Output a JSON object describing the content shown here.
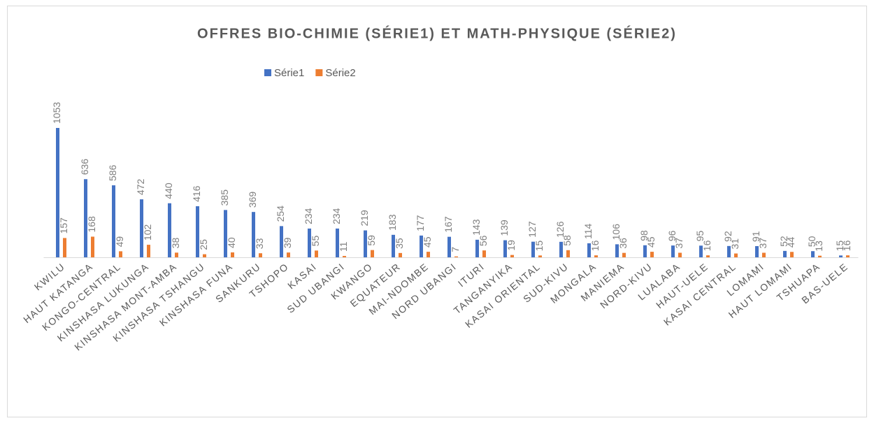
{
  "chart_data": {
    "type": "bar",
    "title": "OFFRES BIO-CHIMIE (SÉRIE1) ET MATH-PHYSIQUE (SÉRIE2)",
    "categories": [
      "KWILU",
      "HAUT KATANGA",
      "KONGO-CENTRAL",
      "KINSHASA LUKUNGA",
      "KINSHASA MONT-AMBA",
      "KINSHASA TSHANGU",
      "KINSHASA FUNA",
      "SANKURU",
      "TSHOPO",
      "KASAI",
      "SUD UBANGI",
      "KWANGO",
      "EQUATEUR",
      "MAI-NDOMBE",
      "NORD UBANGI",
      "ITURI",
      "TANGANYIKA",
      "KASAI ORIENTAL",
      "SUD-KIVU",
      "MONGALA",
      "MANIEMA",
      "NORD-KIVU",
      "LUALABA",
      "HAUT-UELE",
      "KASAI CENTRAL",
      "LOMAMI",
      "HAUT LOMAMI",
      "TSHUAPA",
      "BAS-UELE"
    ],
    "series": [
      {
        "name": "Série1",
        "color": "#4472c4",
        "values": [
          1053,
          636,
          586,
          472,
          440,
          416,
          385,
          369,
          254,
          234,
          234,
          219,
          183,
          177,
          167,
          143,
          139,
          127,
          126,
          114,
          106,
          98,
          96,
          95,
          92,
          91,
          52,
          50,
          15
        ]
      },
      {
        "name": "Série2",
        "color": "#ed7d31",
        "values": [
          157,
          168,
          49,
          102,
          38,
          25,
          40,
          33,
          39,
          55,
          11,
          59,
          35,
          45,
          7,
          56,
          19,
          15,
          58,
          16,
          36,
          45,
          37,
          16,
          31,
          37,
          44,
          13,
          16
        ]
      }
    ],
    "legend": "top"
  }
}
